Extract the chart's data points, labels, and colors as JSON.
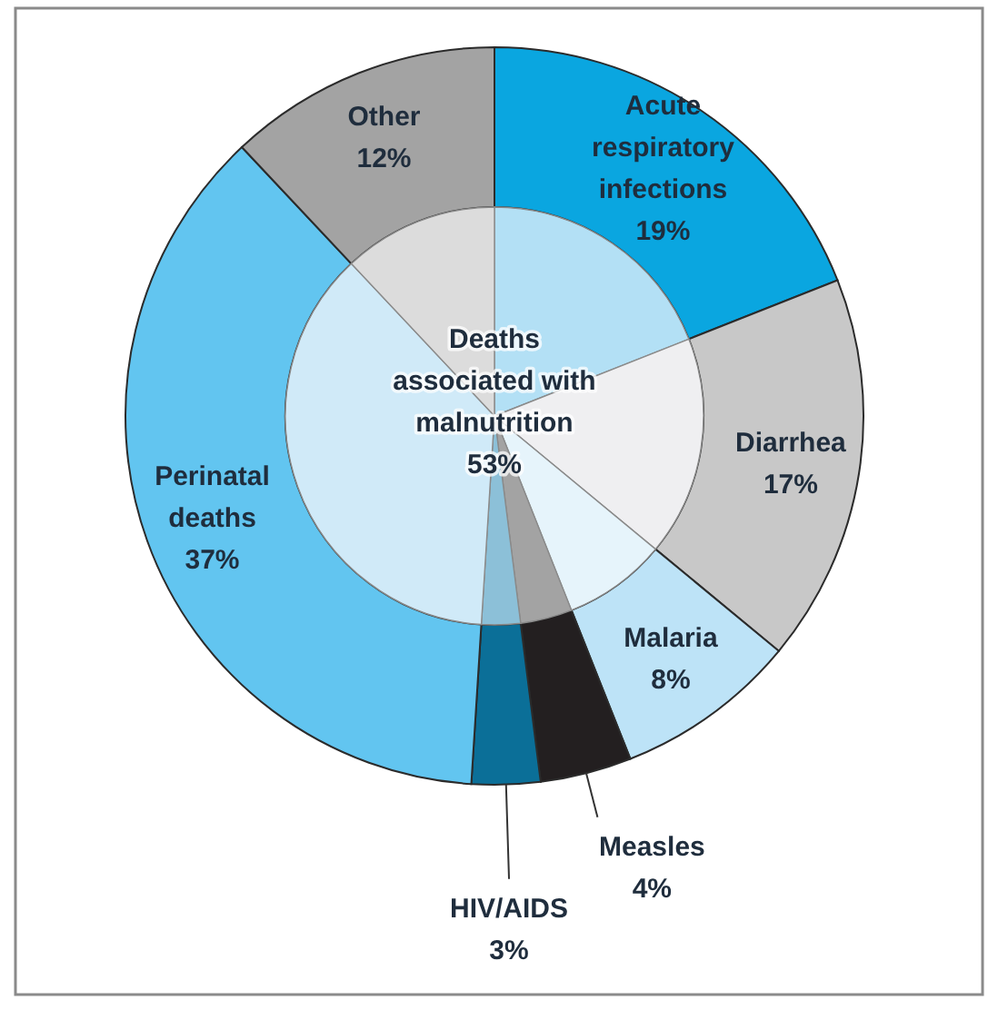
{
  "chart_data": {
    "type": "donut",
    "categories": [
      "Acute respiratory infections",
      "Diarrhea",
      "Malaria",
      "Measles",
      "HIV/AIDS",
      "Perinatal deaths",
      "Other"
    ],
    "series": [
      {
        "values": [
          19,
          17,
          8,
          4,
          3,
          37,
          12
        ],
        "colors": [
          "#0aa6e0",
          "#c8c8c8",
          "#bde3f7",
          "#231f20",
          "#0b6f98",
          "#62c5f0",
          "#a3a3a3"
        ],
        "value_labels": [
          "19%",
          "17%",
          "8%",
          "4%",
          "3%",
          "37%",
          "12%"
        ]
      },
      {
        "type": "pie",
        "values": [
          19,
          17,
          8,
          4,
          3,
          37,
          12
        ],
        "colors": [
          "#b3e0f5",
          "#efeff1",
          "#e6f4fb",
          "#a3a3a3",
          "#8cc0d8",
          "#d0eaf8",
          "#dcdcdc"
        ]
      }
    ],
    "annotations": [
      "Deaths associated with malnutrition 53%"
    ]
  }
}
